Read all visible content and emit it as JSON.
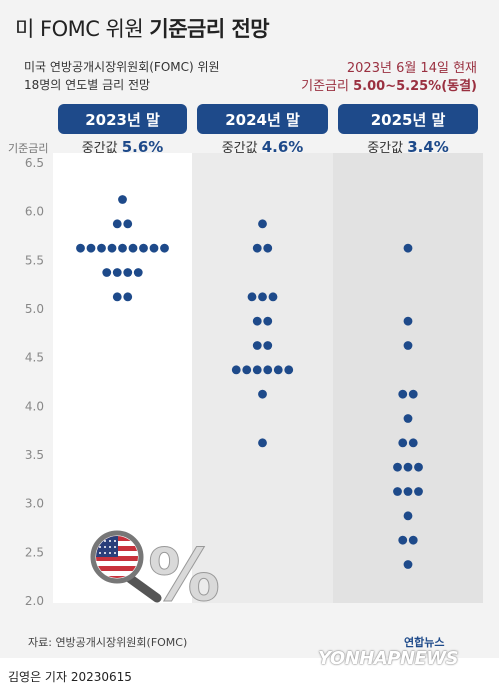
{
  "header": {
    "title_prefix": "미 FOMC 위원",
    "title_bold": "기준금리 전망",
    "subtitle_line1": "미국 연방공개시장위원회(FOMC) 위원",
    "subtitle_line2": "18명의 연도별 금리 전망",
    "date_note": "2023년 6월 14일 현재",
    "rate_label": "기준금리",
    "rate_value": "5.00~5.25%(동결)"
  },
  "chart_data": {
    "type": "scatter",
    "ylabel": "기준금리",
    "ylim": [
      2.0,
      6.5
    ],
    "yticks": [
      "6.5",
      "6.0",
      "5.5",
      "5.0",
      "4.5",
      "4.0",
      "3.5",
      "3.0",
      "2.5",
      "2.0"
    ],
    "columns": [
      {
        "label": "2023년 말",
        "median_label": "중간값",
        "median_value": "5.6%",
        "points": [
          {
            "y": 6.125,
            "count": 1
          },
          {
            "y": 5.875,
            "count": 2
          },
          {
            "y": 5.625,
            "count": 9
          },
          {
            "y": 5.375,
            "count": 4
          },
          {
            "y": 5.125,
            "count": 2
          }
        ]
      },
      {
        "label": "2024년 말",
        "median_label": "중간값",
        "median_value": "4.6%",
        "points": [
          {
            "y": 5.875,
            "count": 1
          },
          {
            "y": 5.625,
            "count": 2
          },
          {
            "y": 5.125,
            "count": 3
          },
          {
            "y": 4.875,
            "count": 2
          },
          {
            "y": 4.625,
            "count": 2
          },
          {
            "y": 4.375,
            "count": 6
          },
          {
            "y": 4.125,
            "count": 1
          },
          {
            "y": 3.625,
            "count": 1
          }
        ]
      },
      {
        "label": "2025년 말",
        "median_label": "중간값",
        "median_value": "3.4%",
        "points": [
          {
            "y": 5.625,
            "count": 1
          },
          {
            "y": 4.875,
            "count": 1
          },
          {
            "y": 4.625,
            "count": 1
          },
          {
            "y": 4.125,
            "count": 2
          },
          {
            "y": 3.875,
            "count": 1
          },
          {
            "y": 3.625,
            "count": 2
          },
          {
            "y": 3.375,
            "count": 3
          },
          {
            "y": 3.125,
            "count": 3
          },
          {
            "y": 2.875,
            "count": 1
          },
          {
            "y": 2.625,
            "count": 2
          },
          {
            "y": 2.375,
            "count": 1
          }
        ]
      }
    ],
    "colors": {
      "dot": "#1e4a8a",
      "header_bg": "#1e4a8a",
      "median_value": "#1e4a8a",
      "accent": "#9a3040",
      "col_bg": [
        "#ffffff",
        "#ebebeb",
        "#e2e2e2"
      ]
    }
  },
  "illustration": {
    "icon": "magnifier-us-flag-icon",
    "percent_symbol": "%"
  },
  "footer": {
    "source": "자료: 연방공개시장위원회(FOMC)",
    "credit": "김영은 기자  20230615",
    "logo_small": "연합뉴스",
    "logo_big": "YONHAPNEWS"
  }
}
